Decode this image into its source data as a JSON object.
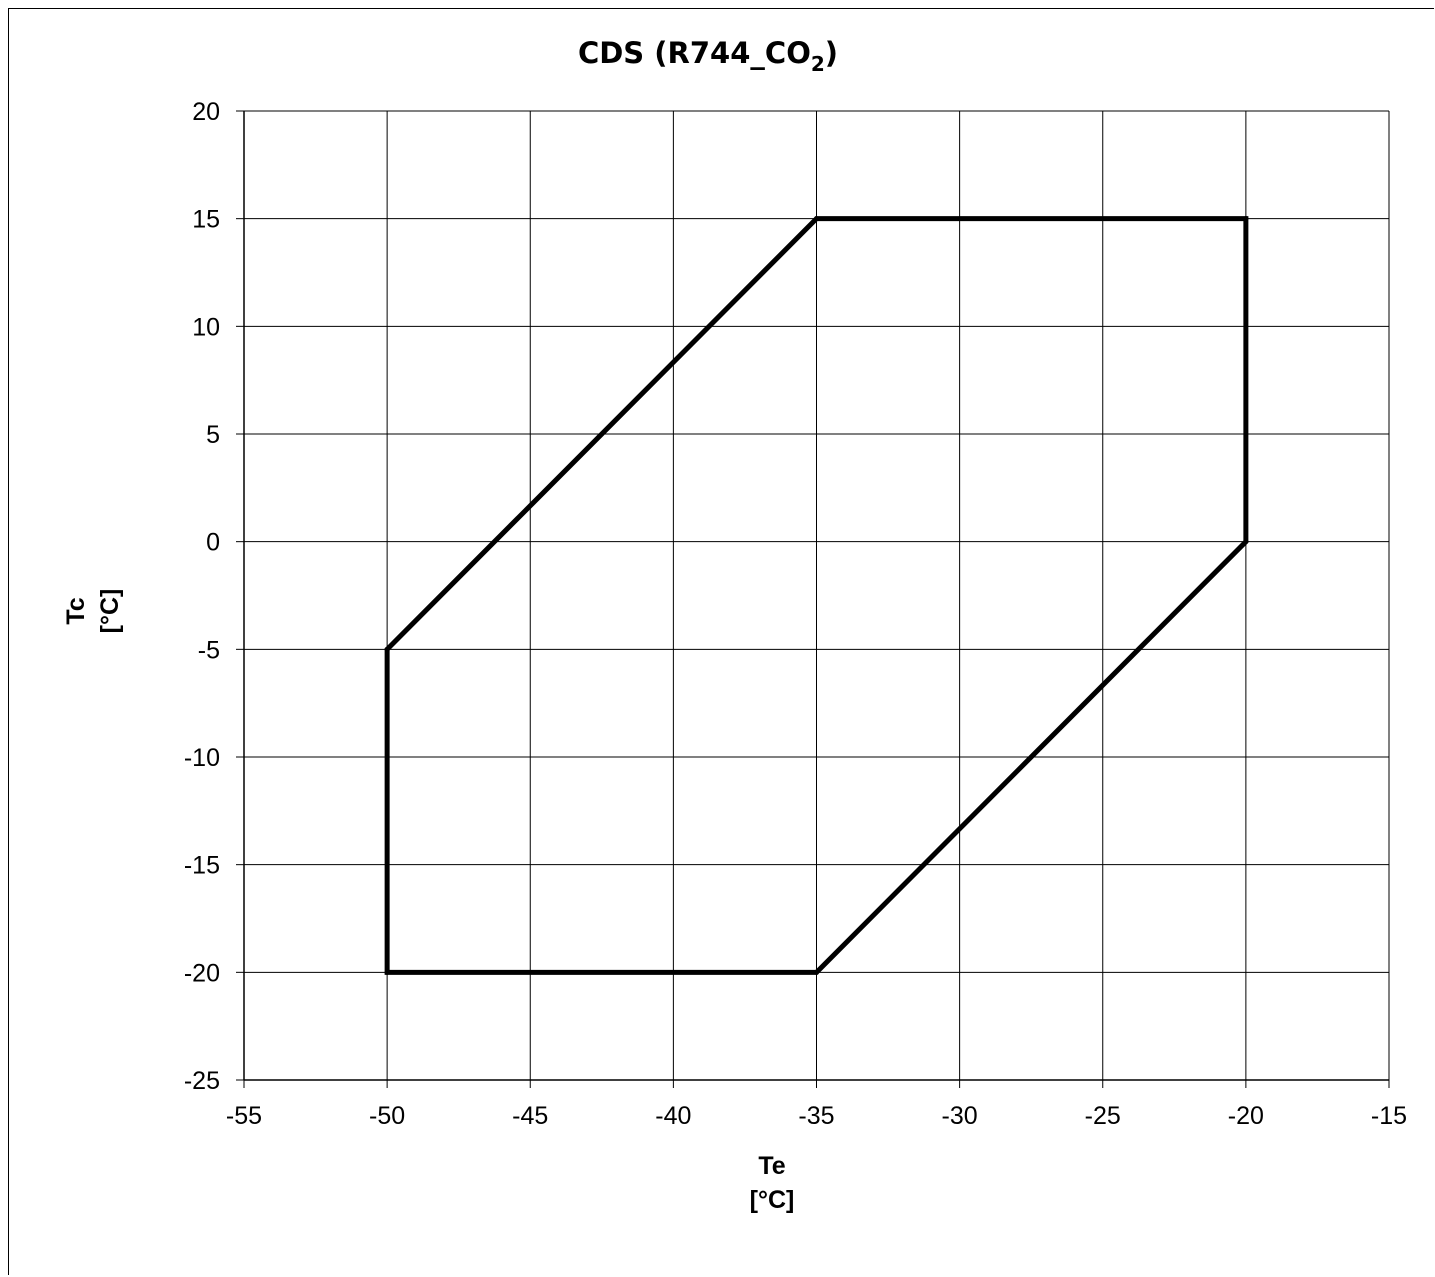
{
  "chart_data": {
    "type": "line",
    "title": {
      "main": "CDS (R744_CO",
      "subscript": "2",
      "close": ")"
    },
    "xlabel": {
      "line1": "Te",
      "line2": "[°C]"
    },
    "ylabel": {
      "line1": "Tc",
      "line2": "[°C]"
    },
    "xlim": [
      -55,
      -15
    ],
    "ylim": [
      -25,
      20
    ],
    "xticks": [
      -55,
      -50,
      -45,
      -40,
      -35,
      -30,
      -25,
      -20,
      -15
    ],
    "yticks": [
      20,
      15,
      10,
      5,
      0,
      -5,
      -10,
      -15,
      -20,
      -25
    ],
    "grid": true,
    "legend": "none",
    "line_color": "#000000",
    "series": [
      {
        "closed": true,
        "points": [
          {
            "x": -50,
            "y": -5
          },
          {
            "x": -35,
            "y": 15
          },
          {
            "x": -20,
            "y": 15
          },
          {
            "x": -20,
            "y": 0
          },
          {
            "x": -35,
            "y": -20
          },
          {
            "x": -50,
            "y": -20
          }
        ]
      }
    ]
  }
}
